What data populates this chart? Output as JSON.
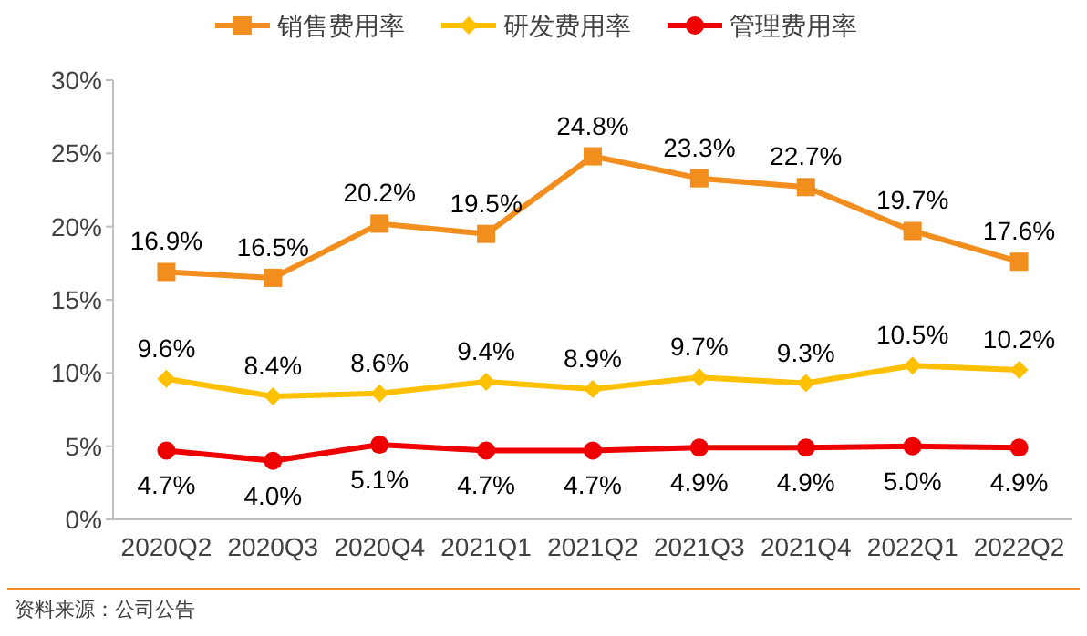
{
  "chart_data": {
    "type": "line",
    "categories": [
      "2020Q2",
      "2020Q3",
      "2020Q4",
      "2021Q1",
      "2021Q2",
      "2021Q3",
      "2021Q4",
      "2022Q1",
      "2022Q2"
    ],
    "series": [
      {
        "name": "销售费用率",
        "color": "#f28e1e",
        "marker": "square",
        "values": [
          16.9,
          16.5,
          20.2,
          19.5,
          24.8,
          23.3,
          22.7,
          19.7,
          17.6
        ],
        "value_labels": [
          "16.9%",
          "16.5%",
          "20.2%",
          "19.5%",
          "24.8%",
          "23.3%",
          "22.7%",
          "19.7%",
          "17.6%"
        ]
      },
      {
        "name": "研发费用率",
        "color": "#ffc000",
        "marker": "diamond",
        "values": [
          9.6,
          8.4,
          8.6,
          9.4,
          8.9,
          9.7,
          9.3,
          10.5,
          10.2
        ],
        "value_labels": [
          "9.6%",
          "8.4%",
          "8.6%",
          "9.4%",
          "8.9%",
          "9.7%",
          "9.3%",
          "10.5%",
          "10.2%"
        ]
      },
      {
        "name": "管理费用率",
        "color": "#ee0000",
        "marker": "circle",
        "values": [
          4.7,
          4.0,
          5.1,
          4.7,
          4.7,
          4.9,
          4.9,
          5.0,
          4.9
        ],
        "value_labels": [
          "4.7%",
          "4.0%",
          "5.1%",
          "4.7%",
          "4.7%",
          "4.9%",
          "4.9%",
          "5.0%",
          "4.9%"
        ]
      }
    ],
    "ylim": [
      0,
      30
    ],
    "yticks": [
      {
        "value": 0,
        "label": "0%"
      },
      {
        "value": 5,
        "label": "5%"
      },
      {
        "value": 10,
        "label": "10%"
      },
      {
        "value": 15,
        "label": "15%"
      },
      {
        "value": 20,
        "label": "20%"
      },
      {
        "value": 25,
        "label": "25%"
      },
      {
        "value": 30,
        "label": "30%"
      }
    ],
    "legend": "top",
    "grid": false,
    "annotations": [
      "资料来源：公司公告"
    ]
  }
}
